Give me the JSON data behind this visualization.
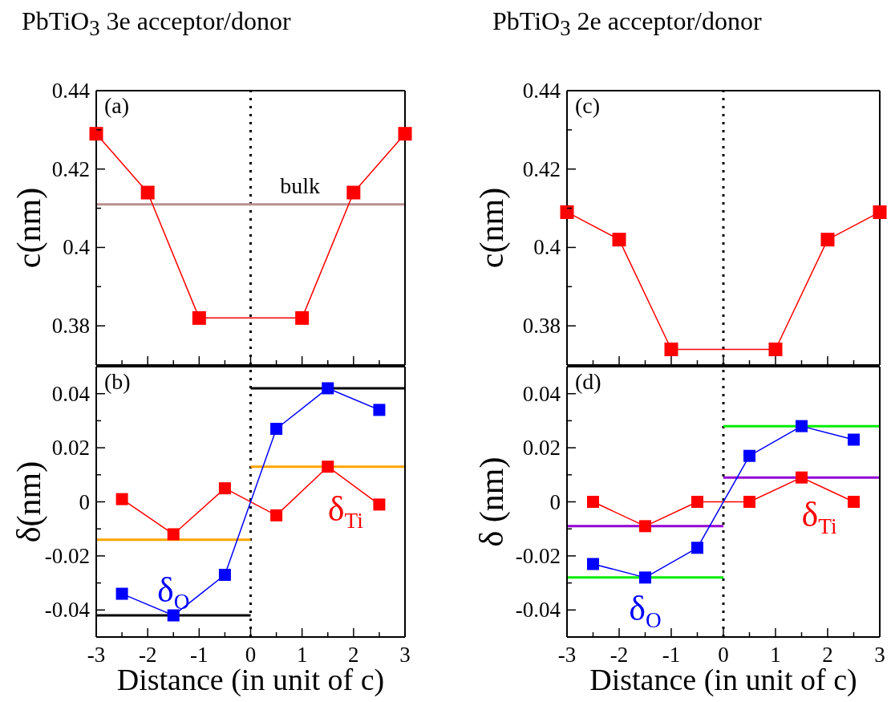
{
  "chart_data": [
    {
      "type": "line",
      "title": "PbTiO$_{3}$ 3e acceptor/donor",
      "ylabel": "c(nm)",
      "annotations": [
        "(a)"
      ],
      "x": [
        -3,
        -2,
        -1,
        1,
        2,
        3
      ],
      "series": [
        {
          "color": "#ff0000",
          "values": [
            0.429,
            0.414,
            0.382,
            0.382,
            0.414,
            0.429
          ]
        }
      ],
      "xlim": [
        -3,
        3
      ],
      "xticks": [
        -3,
        {
          "value": -2.5,
          "label": null
        },
        -2,
        {
          "value": -1.5,
          "label": null
        },
        -1,
        {
          "value": -0.5,
          "label": null
        },
        0,
        {
          "value": 0.5,
          "label": null
        },
        1,
        {
          "value": 1.5,
          "label": null
        },
        2,
        {
          "value": 2.5,
          "label": null
        },
        3
      ],
      "ylim": [
        0.37,
        0.44
      ],
      "yticks": [
        {
          "value": 0.37,
          "label": null
        },
        0.38,
        {
          "value": 0.39,
          "label": null
        },
        0.4,
        {
          "value": 0.41,
          "label": null
        },
        0.42,
        {
          "value": 0.43,
          "label": null
        },
        0.44
      ],
      "tick_labels": "y",
      "ref_lines": [
        {
          "axis": "x",
          "value": 0,
          "line_style": "dotted",
          "color": "#000000"
        },
        {
          "axis": "y",
          "value": 0.411,
          "label": "bulk",
          "color": "#bc8f8f"
        }
      ],
      "marker": "square",
      "line_style": "solid",
      "grid": false,
      "legend": false
    },
    {
      "type": "line",
      "xlabel": "Distance (in unit of c)",
      "ylabel": "δ(nm)",
      "annotations": [
        "(b)"
      ],
      "series": [
        {
          "type": "line",
          "marker": "none",
          "color": "#000000",
          "x": [
            -3,
            0
          ],
          "values": [
            -0.042,
            -0.042
          ]
        },
        {
          "type": "line",
          "marker": "none",
          "color": "#000000",
          "x": [
            0,
            3
          ],
          "values": [
            0.042,
            0.042
          ]
        },
        {
          "type": "line",
          "marker": "none",
          "color": "#ffa500",
          "x": [
            -3,
            0
          ],
          "values": [
            -0.014,
            -0.014
          ]
        },
        {
          "type": "line",
          "marker": "none",
          "color": "#ffa500",
          "x": [
            0,
            3
          ],
          "values": [
            0.013,
            0.013
          ]
        },
        {
          "name": "δ$_{Ti}$",
          "color": "#ff0000",
          "x": [
            -2.5,
            -1.5,
            -0.5,
            0.5,
            1.5,
            2.5
          ],
          "values": [
            0.001,
            -0.012,
            0.005,
            -0.005,
            0.013,
            -0.001
          ]
        },
        {
          "name": "δ$_{O}$",
          "color": "#0000ff",
          "x": [
            -2.5,
            -1.5,
            -0.5,
            0.5,
            1.5,
            2.5
          ],
          "values": [
            -0.034,
            -0.042,
            -0.027,
            0.027,
            0.042,
            0.034
          ]
        }
      ],
      "xlim": [
        -3,
        3
      ],
      "xticks": [
        -3,
        {
          "value": -2.5,
          "label": null
        },
        -2,
        {
          "value": -1.5,
          "label": null
        },
        -1,
        {
          "value": -0.5,
          "label": null
        },
        0,
        {
          "value": 0.5,
          "label": null
        },
        1,
        {
          "value": 1.5,
          "label": null
        },
        2,
        {
          "value": 2.5,
          "label": null
        },
        3
      ],
      "ylim": [
        -0.05,
        0.05
      ],
      "yticks": [
        -0.04,
        {
          "value": -0.03,
          "label": null
        },
        -0.02,
        {
          "value": -0.01,
          "label": null
        },
        0,
        {
          "value": 0.01,
          "label": null
        },
        0.02,
        {
          "value": 0.03,
          "label": null
        },
        0.04
      ],
      "ref_lines": [
        {
          "axis": "x",
          "value": 0,
          "line_style": "dotted",
          "color": "#000000"
        }
      ],
      "marker": "square",
      "line_style": "solid",
      "grid": false,
      "legend": false
    },
    {
      "type": "line",
      "title": "PbTiO$_{3}$ 2e acceptor/donor",
      "ylabel": "c(nm)",
      "annotations": [
        "(c)"
      ],
      "x": [
        -3,
        -2,
        -1,
        1,
        2,
        3
      ],
      "series": [
        {
          "color": "#ff0000",
          "values": [
            0.409,
            0.402,
            0.374,
            0.374,
            0.402,
            0.409
          ]
        }
      ],
      "xlim": [
        -3,
        3
      ],
      "xticks": [
        -3,
        {
          "value": -2.5,
          "label": null
        },
        -2,
        {
          "value": -1.5,
          "label": null
        },
        -1,
        {
          "value": -0.5,
          "label": null
        },
        0,
        {
          "value": 0.5,
          "label": null
        },
        1,
        {
          "value": 1.5,
          "label": null
        },
        2,
        {
          "value": 2.5,
          "label": null
        },
        3
      ],
      "ylim": [
        0.37,
        0.44
      ],
      "yticks": [
        {
          "value": 0.37,
          "label": null
        },
        0.38,
        {
          "value": 0.39,
          "label": null
        },
        0.4,
        {
          "value": 0.41,
          "label": null
        },
        0.42,
        {
          "value": 0.43,
          "label": null
        },
        0.44
      ],
      "tick_labels": "y",
      "ref_lines": [
        {
          "axis": "x",
          "value": 0,
          "line_style": "dotted",
          "color": "#000000"
        }
      ],
      "marker": "square",
      "line_style": "solid",
      "grid": false,
      "legend": false
    },
    {
      "type": "line",
      "xlabel": "Distance (in unit of c)",
      "ylabel": "δ (nm)",
      "annotations": [
        "(d)"
      ],
      "series": [
        {
          "type": "line",
          "marker": "none",
          "color": "#00ee00",
          "x": [
            -3,
            0
          ],
          "values": [
            -0.028,
            -0.028
          ]
        },
        {
          "type": "line",
          "marker": "none",
          "color": "#00ee00",
          "x": [
            0,
            3
          ],
          "values": [
            0.028,
            0.028
          ]
        },
        {
          "type": "line",
          "marker": "none",
          "color": "#9400d3",
          "x": [
            -3,
            0
          ],
          "values": [
            -0.009,
            -0.009
          ]
        },
        {
          "type": "line",
          "marker": "none",
          "color": "#9400d3",
          "x": [
            0,
            3
          ],
          "values": [
            0.009,
            0.009
          ]
        },
        {
          "name": "δ$_{Ti}$",
          "color": "#ff0000",
          "x": [
            -2.5,
            -1.5,
            -0.5,
            0.5,
            1.5,
            2.5
          ],
          "values": [
            0,
            -0.009,
            0,
            0,
            0.009,
            0
          ]
        },
        {
          "name": "δ$_{O}$",
          "color": "#0000ff",
          "x": [
            -2.5,
            -1.5,
            -0.5,
            0.5,
            1.5,
            2.5
          ],
          "values": [
            -0.023,
            -0.028,
            -0.017,
            0.017,
            0.028,
            0.023
          ]
        }
      ],
      "xlim": [
        -3,
        3
      ],
      "xticks": [
        -3,
        {
          "value": -2.5,
          "label": null
        },
        -2,
        {
          "value": -1.5,
          "label": null
        },
        -1,
        {
          "value": -0.5,
          "label": null
        },
        0,
        {
          "value": 0.5,
          "label": null
        },
        1,
        {
          "value": 1.5,
          "label": null
        },
        2,
        {
          "value": 2.5,
          "label": null
        },
        3
      ],
      "ylim": [
        -0.05,
        0.05
      ],
      "yticks": [
        -0.04,
        {
          "value": -0.03,
          "label": null
        },
        -0.02,
        {
          "value": -0.01,
          "label": null
        },
        0,
        {
          "value": 0.01,
          "label": null
        },
        0.02,
        {
          "value": 0.03,
          "label": null
        },
        0.04
      ],
      "ref_lines": [
        {
          "axis": "x",
          "value": 0,
          "line_style": "dotted",
          "color": "#000000"
        }
      ],
      "marker": "square",
      "line_style": "solid",
      "grid": false,
      "legend": false
    }
  ]
}
